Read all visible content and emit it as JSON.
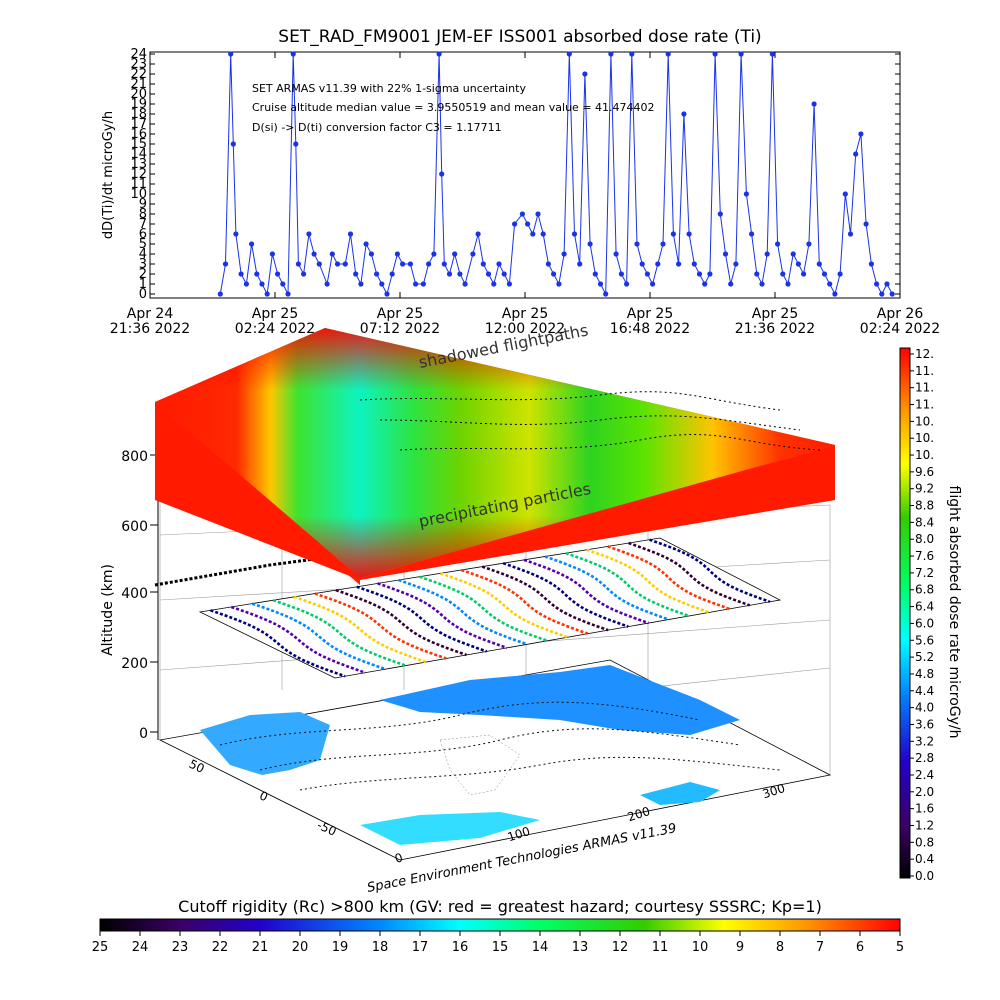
{
  "chart_data": [
    {
      "type": "line",
      "title": "SET_RAD_FM9001  JEM-EF ISS001 absorbed dose rate (Ti)",
      "ylabel": "dD(Ti)/dt microGy/h",
      "ylim": [
        0,
        24
      ],
      "yticks": [
        0,
        1,
        2,
        3,
        4,
        5,
        6,
        7,
        8,
        9,
        10,
        11,
        12,
        13,
        14,
        15,
        16,
        17,
        18,
        19,
        20,
        21,
        22,
        23,
        24
      ],
      "xticks": [
        {
          "line1": "Apr 24",
          "line2": "21:36 2022",
          "hours": 0
        },
        {
          "line1": "Apr 25",
          "line2": "02:24 2022",
          "hours": 4.8
        },
        {
          "line1": "Apr 25",
          "line2": "07:12 2022",
          "hours": 9.6
        },
        {
          "line1": "Apr 25",
          "line2": "12:00 2022",
          "hours": 14.4
        },
        {
          "line1": "Apr 25",
          "line2": "16:48 2022",
          "hours": 19.2
        },
        {
          "line1": "Apr 25",
          "line2": "21:36 2022",
          "hours": 24
        },
        {
          "line1": "Apr 26",
          "line2": "02:24 2022",
          "hours": 28.8
        }
      ],
      "xlim_hours": [
        0,
        28.8
      ],
      "annotations": [
        "SET ARMAS v11.39 with 22% 1-sigma uncertainty",
        "Cruise altitude median value = 3.9550519 and mean value = 41.474402",
        "D(si) -> D(ti) conversion factor C3 = 1.17711"
      ],
      "series": [
        {
          "color": "#1a33e6",
          "points": [
            [
              2.7,
              0
            ],
            [
              2.9,
              3
            ],
            [
              3.1,
              24
            ],
            [
              3.2,
              15
            ],
            [
              3.3,
              6
            ],
            [
              3.5,
              2
            ],
            [
              3.7,
              1
            ],
            [
              3.9,
              5
            ],
            [
              4.1,
              2
            ],
            [
              4.3,
              1
            ],
            [
              4.5,
              0
            ],
            [
              4.7,
              4
            ],
            [
              4.9,
              2
            ],
            [
              5.1,
              1
            ],
            [
              5.3,
              0
            ],
            [
              5.5,
              24
            ],
            [
              5.6,
              15
            ],
            [
              5.7,
              3
            ],
            [
              5.9,
              2
            ],
            [
              6.1,
              6
            ],
            [
              6.3,
              4
            ],
            [
              6.5,
              3
            ],
            [
              6.8,
              1
            ],
            [
              7.0,
              4
            ],
            [
              7.2,
              3
            ],
            [
              7.5,
              3
            ],
            [
              7.7,
              6
            ],
            [
              7.9,
              2
            ],
            [
              8.1,
              1
            ],
            [
              8.3,
              5
            ],
            [
              8.5,
              4
            ],
            [
              8.7,
              2
            ],
            [
              8.9,
              1
            ],
            [
              9.1,
              0
            ],
            [
              9.3,
              2
            ],
            [
              9.5,
              4
            ],
            [
              9.7,
              3
            ],
            [
              10.0,
              3
            ],
            [
              10.2,
              1
            ],
            [
              10.5,
              1
            ],
            [
              10.7,
              3
            ],
            [
              10.9,
              4
            ],
            [
              11.1,
              24
            ],
            [
              11.2,
              12
            ],
            [
              11.3,
              3
            ],
            [
              11.5,
              2
            ],
            [
              11.7,
              4
            ],
            [
              11.9,
              2
            ],
            [
              12.1,
              1
            ],
            [
              12.4,
              4
            ],
            [
              12.6,
              6
            ],
            [
              12.8,
              3
            ],
            [
              13.0,
              2
            ],
            [
              13.2,
              1
            ],
            [
              13.4,
              3
            ],
            [
              13.6,
              2
            ],
            [
              13.8,
              1
            ],
            [
              14.0,
              7
            ],
            [
              14.3,
              8
            ],
            [
              14.5,
              7
            ],
            [
              14.7,
              6
            ],
            [
              14.9,
              8
            ],
            [
              15.1,
              6
            ],
            [
              15.3,
              3
            ],
            [
              15.5,
              2
            ],
            [
              15.7,
              1
            ],
            [
              15.9,
              4
            ],
            [
              16.1,
              24
            ],
            [
              16.3,
              6
            ],
            [
              16.5,
              3
            ],
            [
              16.7,
              22
            ],
            [
              16.9,
              5
            ],
            [
              17.1,
              2
            ],
            [
              17.3,
              1
            ],
            [
              17.5,
              0
            ],
            [
              17.7,
              24
            ],
            [
              17.9,
              4
            ],
            [
              18.1,
              2
            ],
            [
              18.3,
              1
            ],
            [
              18.5,
              24
            ],
            [
              18.7,
              5
            ],
            [
              18.9,
              3
            ],
            [
              19.1,
              2
            ],
            [
              19.3,
              1
            ],
            [
              19.5,
              3
            ],
            [
              19.7,
              5
            ],
            [
              19.9,
              24
            ],
            [
              20.1,
              6
            ],
            [
              20.3,
              3
            ],
            [
              20.5,
              18
            ],
            [
              20.7,
              6
            ],
            [
              20.9,
              3
            ],
            [
              21.1,
              2
            ],
            [
              21.3,
              1
            ],
            [
              21.5,
              2
            ],
            [
              21.7,
              24
            ],
            [
              21.9,
              8
            ],
            [
              22.1,
              4
            ],
            [
              22.3,
              1
            ],
            [
              22.5,
              3
            ],
            [
              22.7,
              24
            ],
            [
              22.9,
              10
            ],
            [
              23.1,
              6
            ],
            [
              23.3,
              2
            ],
            [
              23.5,
              1
            ],
            [
              23.7,
              4
            ],
            [
              23.9,
              24
            ],
            [
              24.1,
              5
            ],
            [
              24.3,
              2
            ],
            [
              24.5,
              1
            ],
            [
              24.7,
              4
            ],
            [
              24.9,
              3
            ],
            [
              25.1,
              2
            ],
            [
              25.3,
              5
            ],
            [
              25.5,
              19
            ],
            [
              25.7,
              3
            ],
            [
              25.9,
              2
            ],
            [
              26.1,
              1
            ],
            [
              26.3,
              0
            ],
            [
              26.5,
              2
            ],
            [
              26.7,
              10
            ],
            [
              26.9,
              6
            ],
            [
              27.1,
              14
            ],
            [
              27.3,
              16
            ],
            [
              27.5,
              7
            ],
            [
              27.7,
              3
            ],
            [
              27.9,
              1
            ],
            [
              28.1,
              0
            ],
            [
              28.3,
              1
            ],
            [
              28.5,
              0
            ]
          ]
        }
      ]
    },
    {
      "type": "heatmap",
      "zlabel": "Altitude (km)",
      "zticks": [
        0,
        200,
        400,
        600,
        800
      ],
      "lon_ticks": [
        100,
        200,
        300
      ],
      "lat_ticks": [
        50,
        0,
        -50
      ],
      "base_lon_tick": 0,
      "annotations": [
        "shadowed flightpaths",
        "precipitating particles"
      ],
      "credit": "Space Environment Technologies ARMAS v11.39"
    },
    {
      "type": "heatmap",
      "colorbar": "right",
      "label": "flight absorbed dose rate microGy/h",
      "ticks": [
        "12.",
        "11.",
        "11.",
        "11.",
        "10.",
        "10.",
        "10.",
        "9.6",
        "9.2",
        "8.8",
        "8.4",
        "8.0",
        "7.6",
        "7.2",
        "6.8",
        "6.4",
        "6.0",
        "5.6",
        "5.2",
        "4.8",
        "4.4",
        "4.0",
        "3.6",
        "3.2",
        "2.8",
        "2.4",
        "2.0",
        "1.6",
        "1.2",
        "0.8",
        "0.4",
        "0.0"
      ]
    },
    {
      "type": "heatmap",
      "colorbar": "bottom",
      "label": "Cutoff rigidity (Rc) >800 km (GV: red = greatest hazard; courtesy SSSRC; Kp=1)",
      "ticks": [
        "25",
        "24",
        "23",
        "22",
        "21",
        "20",
        "19",
        "18",
        "17",
        "16",
        "15",
        "14",
        "13",
        "12",
        "11",
        "10",
        "9",
        "8",
        "7",
        "6",
        "5"
      ]
    }
  ]
}
